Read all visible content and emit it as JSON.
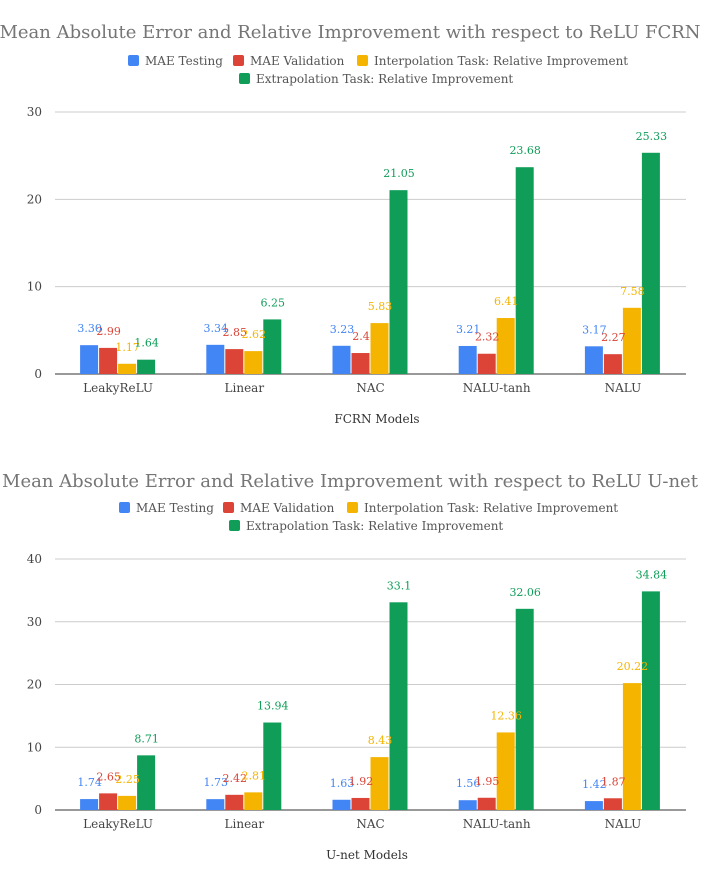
{
  "chart_data": [
    {
      "type": "bar",
      "title": "Mean Absolute Error and Relative Improvement with respect to ReLU FCRN",
      "xlabel": "FCRN Models",
      "ylabel": "",
      "ylim": [
        0,
        30
      ],
      "yticks": [
        0,
        10,
        20,
        30
      ],
      "grid": true,
      "legend_position": "top-center",
      "categories": [
        "LeakyReLU",
        "Linear",
        "NAC",
        "NALU-tanh",
        "NALU"
      ],
      "series": [
        {
          "name": "MAE Testing",
          "color": "#4285F4",
          "values": [
            3.3,
            3.34,
            3.23,
            3.21,
            3.17
          ],
          "labels": [
            "3.30",
            "3.34",
            "3.23",
            "3.21",
            "3.17"
          ]
        },
        {
          "name": "MAE Validation",
          "color": "#DB4437",
          "values": [
            2.99,
            2.85,
            2.4,
            2.32,
            2.27
          ],
          "labels": [
            "2.99",
            "2.85",
            "2.4",
            "2.32",
            "2.27"
          ]
        },
        {
          "name": "Interpolation Task: Relative Improvement",
          "color": "#F4B400",
          "values": [
            1.17,
            2.62,
            5.83,
            6.41,
            7.58
          ],
          "labels": [
            "1.17",
            "2.62",
            "5.83",
            "6.41",
            "7.58"
          ]
        },
        {
          "name": "Extrapolation Task:  Relative Improvement",
          "color": "#0F9D58",
          "values": [
            1.64,
            6.25,
            21.05,
            23.68,
            25.33
          ],
          "labels": [
            "1.64",
            "6.25",
            "21.05",
            "23.68",
            "25.33"
          ]
        }
      ]
    },
    {
      "type": "bar",
      "title": "Mean Absolute Error and Relative Improvement with respect to ReLU U-net",
      "xlabel": "U-net Models",
      "ylabel": "",
      "ylim": [
        0,
        40
      ],
      "yticks": [
        0,
        10,
        20,
        30,
        40
      ],
      "grid": true,
      "legend_position": "top-center",
      "categories": [
        "LeakyReLU",
        "Linear",
        "NAC",
        "NALU-tanh",
        "NALU"
      ],
      "series": [
        {
          "name": "MAE Testing",
          "color": "#4285F4",
          "values": [
            1.74,
            1.73,
            1.63,
            1.56,
            1.42
          ],
          "labels": [
            "1.74",
            "1.73",
            "1.63",
            "1.56",
            "1.42"
          ]
        },
        {
          "name": "MAE Validation",
          "color": "#DB4437",
          "values": [
            2.65,
            2.42,
            1.92,
            1.95,
            1.87
          ],
          "labels": [
            "2.65",
            "2.42",
            "1.92",
            "1.95",
            "1.87"
          ]
        },
        {
          "name": "Interpolation Task: Relative Improvement",
          "color": "#F4B400",
          "values": [
            2.25,
            2.81,
            8.43,
            12.36,
            20.22
          ],
          "labels": [
            "2.25",
            "2.81",
            "8.43",
            "12.36",
            "20.22"
          ]
        },
        {
          "name": "Extrapolation Task:  Relative Improvement",
          "color": "#0F9D58",
          "values": [
            8.71,
            13.94,
            33.1,
            32.06,
            34.84
          ],
          "labels": [
            "8.71",
            "13.94",
            "33.1",
            "32.06",
            "34.84"
          ]
        }
      ]
    }
  ]
}
